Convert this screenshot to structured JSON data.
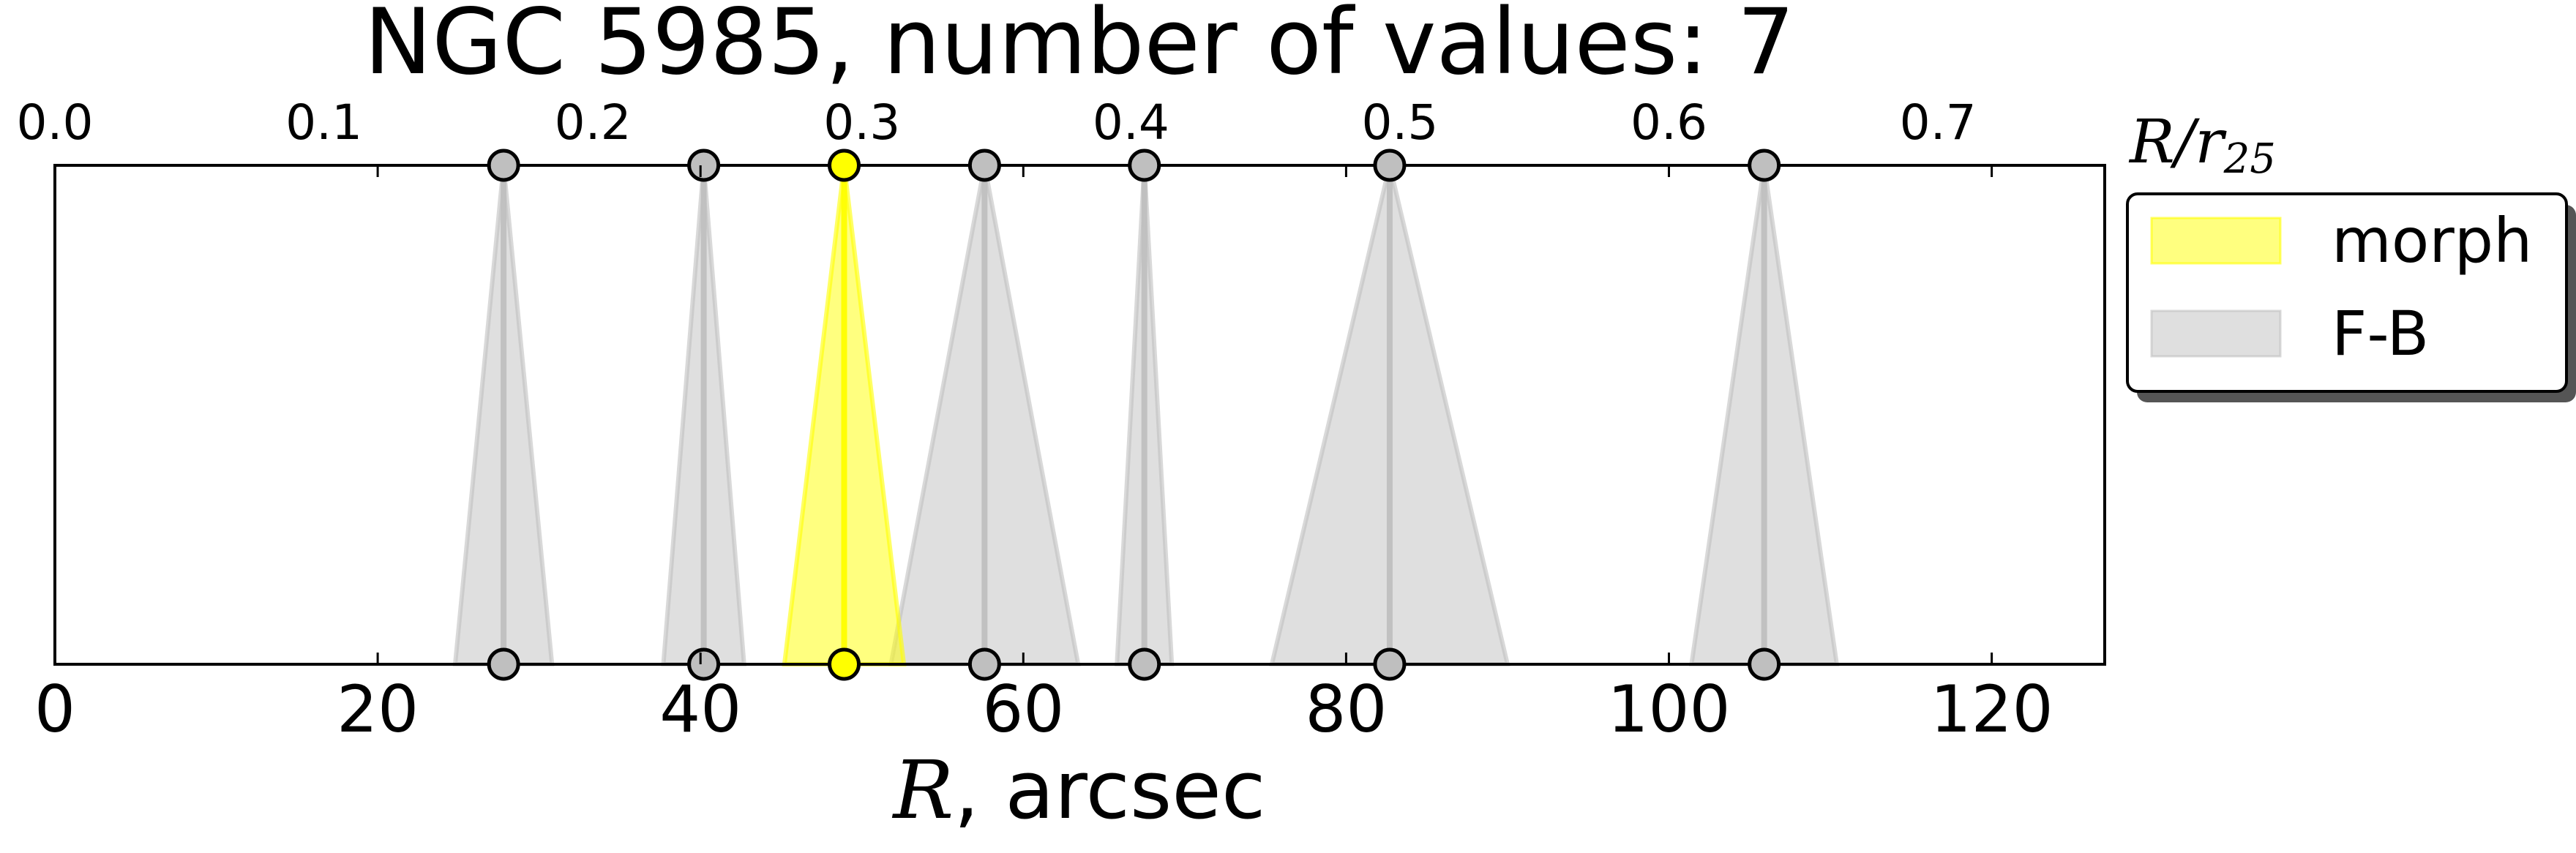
{
  "chart_data": {
    "type": "scatter",
    "title": "NGC 5985, number of values: 7",
    "xlabel": "R, arcsec",
    "xlabel_var": "R",
    "xlabel_unit": ", arcsec",
    "x2label": "R/r25",
    "x2label_parts": {
      "main": "R/r",
      "sub": "25"
    },
    "xlim": [
      0,
      127
    ],
    "x2lim": [
      0,
      0.762
    ],
    "xticks": [
      0,
      20,
      40,
      60,
      80,
      100,
      120
    ],
    "xtick_labels": [
      "0",
      "20",
      "40",
      "60",
      "80",
      "100",
      "120"
    ],
    "x2ticks": [
      0.0,
      0.1,
      0.2,
      0.3,
      0.4,
      0.5,
      0.6,
      0.7
    ],
    "x2tick_labels": [
      "0.0",
      "0.1",
      "0.2",
      "0.3",
      "0.4",
      "0.5",
      "0.6",
      "0.7"
    ],
    "grid": false,
    "legend_position": "outside-top-right",
    "legend": [
      {
        "label": "morph",
        "color": "#ffff00"
      },
      {
        "label": "F-B",
        "color": "#bfbfbf"
      }
    ],
    "points": [
      {
        "series": "F-B",
        "r": 27.8,
        "err": 3.0
      },
      {
        "series": "F-B",
        "r": 40.2,
        "err": 2.5
      },
      {
        "series": "morph",
        "r": 48.9,
        "err": 3.7
      },
      {
        "series": "F-B",
        "r": 57.6,
        "err": 5.8
      },
      {
        "series": "F-B",
        "r": 67.5,
        "err": 1.7
      },
      {
        "series": "F-B",
        "r": 82.7,
        "err": 7.3
      },
      {
        "series": "F-B",
        "r": 105.9,
        "err": 4.5
      }
    ]
  }
}
